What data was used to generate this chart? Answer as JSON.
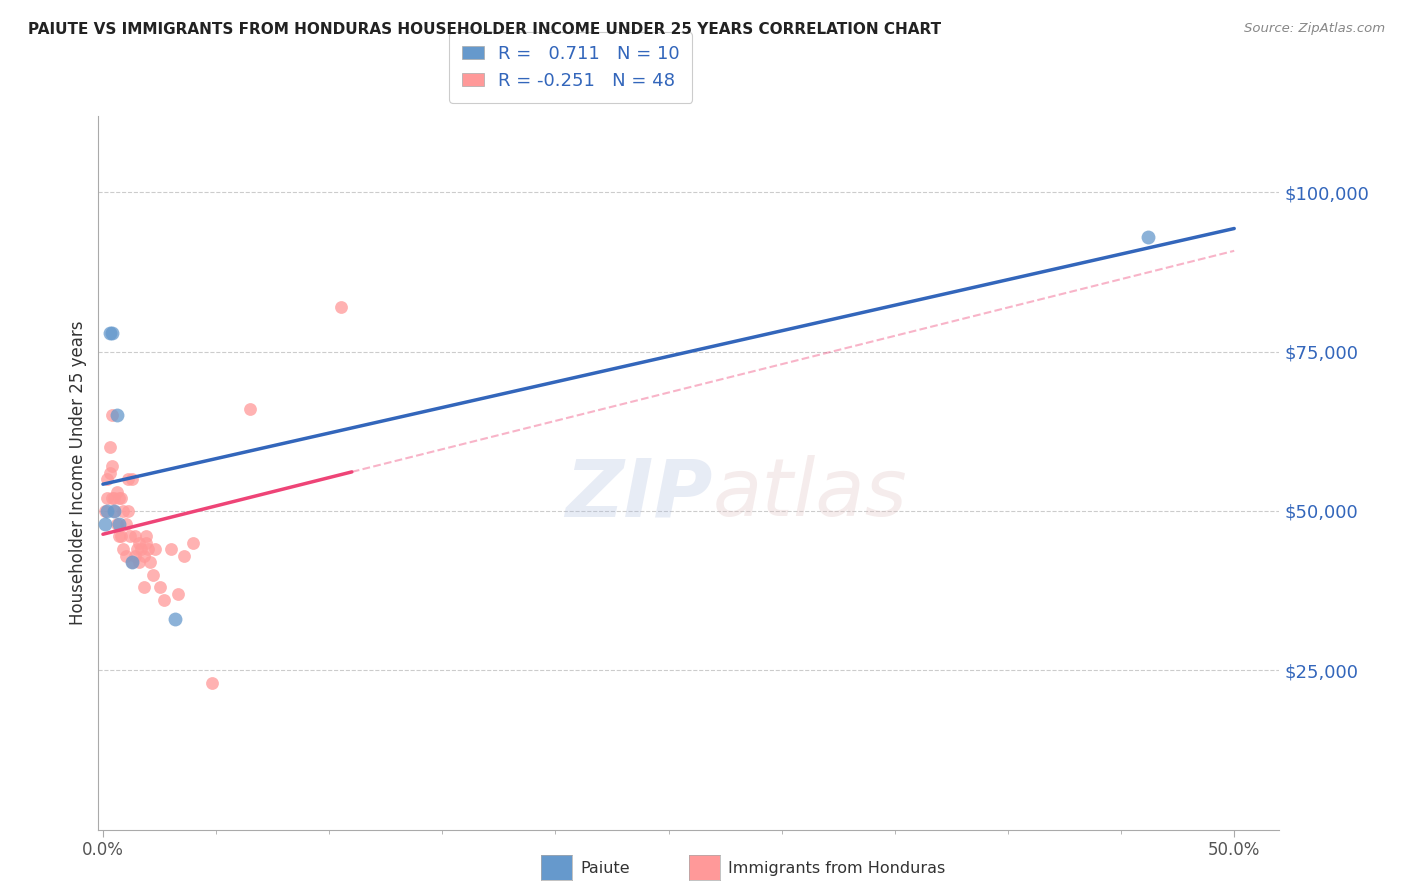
{
  "title": "PAIUTE VS IMMIGRANTS FROM HONDURAS HOUSEHOLDER INCOME UNDER 25 YEARS CORRELATION CHART",
  "source": "Source: ZipAtlas.com",
  "ylabel": "Householder Income Under 25 years",
  "legend_label1": "R =   0.711   N = 10",
  "legend_label2": "R = -0.251   N = 48",
  "ytick_labels": [
    "$25,000",
    "$50,000",
    "$75,000",
    "$100,000"
  ],
  "ytick_values": [
    25000,
    50000,
    75000,
    100000
  ],
  "ymin": 0,
  "ymax": 112000,
  "xmin": -0.002,
  "xmax": 0.52,
  "blue_color": "#6699CC",
  "pink_color": "#FF9999",
  "blue_line_color": "#3366BB",
  "pink_line_color": "#EE4477",
  "paiute_points_x": [
    0.001,
    0.002,
    0.003,
    0.004,
    0.005,
    0.006,
    0.007,
    0.013,
    0.032,
    0.462
  ],
  "paiute_points_y": [
    48000,
    50000,
    78000,
    78000,
    50000,
    65000,
    48000,
    42000,
    33000,
    93000
  ],
  "honduras_points_x": [
    0.001,
    0.002,
    0.002,
    0.003,
    0.003,
    0.004,
    0.004,
    0.004,
    0.005,
    0.005,
    0.006,
    0.006,
    0.007,
    0.007,
    0.008,
    0.008,
    0.009,
    0.009,
    0.01,
    0.01,
    0.011,
    0.011,
    0.012,
    0.013,
    0.013,
    0.014,
    0.014,
    0.015,
    0.016,
    0.016,
    0.017,
    0.018,
    0.018,
    0.019,
    0.019,
    0.02,
    0.021,
    0.022,
    0.023,
    0.025,
    0.027,
    0.03,
    0.033,
    0.036,
    0.04,
    0.048,
    0.065,
    0.105
  ],
  "honduras_points_y": [
    50000,
    52000,
    55000,
    56000,
    60000,
    57000,
    52000,
    65000,
    50000,
    52000,
    48000,
    53000,
    52000,
    46000,
    52000,
    46000,
    44000,
    50000,
    48000,
    43000,
    50000,
    55000,
    46000,
    55000,
    42000,
    46000,
    43000,
    44000,
    45000,
    42000,
    44000,
    43000,
    38000,
    45000,
    46000,
    44000,
    42000,
    40000,
    44000,
    38000,
    36000,
    44000,
    37000,
    43000,
    45000,
    23000,
    66000,
    82000
  ],
  "xtick_positions": [
    0.0,
    0.5
  ],
  "xtick_labels": [
    "0.0%",
    "50.0%"
  ],
  "minor_xtick_positions": [
    0.05,
    0.1,
    0.15,
    0.2,
    0.25,
    0.3,
    0.35,
    0.4,
    0.45
  ]
}
